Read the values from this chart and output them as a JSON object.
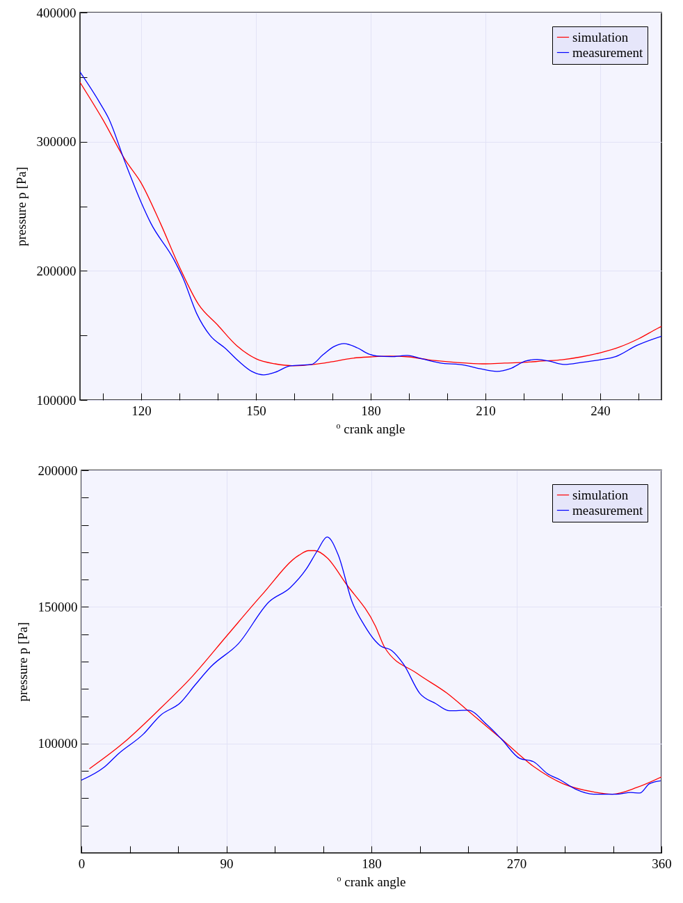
{
  "chart_data": [
    {
      "type": "line",
      "xlabel": "$^{o}$ crank angle",
      "ylabel": "pressure p [Pa]",
      "legend": "top right",
      "grid": true,
      "line_style": "solid",
      "xlim": [
        104,
        256
      ],
      "xticks": [
        {
          "value": 110,
          "label": null
        },
        120,
        {
          "value": 130,
          "label": null
        },
        {
          "value": 140,
          "label": null
        },
        150,
        {
          "value": 160,
          "label": null
        },
        {
          "value": 170,
          "label": null
        },
        180,
        {
          "value": 190,
          "label": null
        },
        {
          "value": 200,
          "label": null
        },
        210,
        {
          "value": 220,
          "label": null
        },
        {
          "value": 230,
          "label": null
        },
        240,
        {
          "value": 250,
          "label": null
        }
      ],
      "ylim": [
        100000,
        400000
      ],
      "yticks": [
        100000,
        {
          "value": 150000,
          "label": null
        },
        200000,
        {
          "value": 250000,
          "label": null
        },
        300000,
        {
          "value": 350000,
          "label": null
        },
        400000
      ],
      "series": [
        {
          "name": "simulation",
          "color": "#ff0000",
          "x": [
            104,
            110,
            115.8,
            120,
            125,
            130,
            135,
            140,
            145,
            150,
            155,
            160,
            165,
            170,
            175,
            180,
            185,
            190,
            195,
            200,
            205,
            210,
            215,
            220,
            225,
            230,
            235,
            240,
            245,
            250,
            255,
            256
          ],
          "values": [
            346000,
            317000,
            286000,
            268000,
            237000,
            203000,
            174000,
            158000,
            142000,
            132000,
            128000,
            126500,
            127500,
            129700,
            132300,
            133400,
            134000,
            133400,
            131200,
            129700,
            128600,
            128000,
            128600,
            129100,
            130200,
            131200,
            133400,
            136600,
            141000,
            147400,
            155500,
            157000
          ]
        },
        {
          "name": "measurement",
          "color": "#0000ff",
          "x": [
            104,
            109,
            111.5,
            115.8,
            120,
            122.5,
            128.5,
            131,
            134.5,
            138,
            142,
            145.5,
            149,
            152,
            155,
            159,
            164.5,
            167.5,
            170.5,
            173,
            176.5,
            179.5,
            181.5,
            185.5,
            189.5,
            193.5,
            198,
            204.5,
            208.5,
            213,
            216.5,
            220.5,
            223.5,
            226.5,
            230.5,
            235.5,
            240.5,
            244,
            249.5,
            256
          ],
          "values": [
            354000,
            331000,
            318000,
            284000,
            253000,
            237000,
            209000,
            194000,
            167000,
            150000,
            140000,
            130000,
            122000,
            119500,
            121500,
            126500,
            127500,
            135000,
            141500,
            143700,
            140400,
            135600,
            134100,
            133600,
            134500,
            131800,
            128800,
            127000,
            124300,
            122100,
            124300,
            130200,
            131400,
            130200,
            127500,
            129300,
            131400,
            133600,
            142200,
            149400
          ]
        }
      ]
    },
    {
      "type": "line",
      "xlabel": "$^{o}$ crank angle",
      "ylabel": "pressure p [Pa]",
      "legend": "top right",
      "grid": true,
      "line_style": "solid",
      "xlim": [
        0,
        360
      ],
      "xticks": [
        0,
        {
          "value": 30,
          "label": null
        },
        {
          "value": 60,
          "label": null
        },
        90,
        {
          "value": 120,
          "label": null
        },
        {
          "value": 150,
          "label": null
        },
        180,
        {
          "value": 210,
          "label": null
        },
        {
          "value": 240,
          "label": null
        },
        270,
        {
          "value": 300,
          "label": null
        },
        {
          "value": 330,
          "label": null
        },
        360
      ],
      "ylim": [
        60000,
        200000
      ],
      "yticks": [
        {
          "value": 70000,
          "label": null
        },
        {
          "value": 80000,
          "label": null
        },
        {
          "value": 90000,
          "label": null
        },
        100000,
        {
          "value": 110000,
          "label": null
        },
        {
          "value": 120000,
          "label": null
        },
        {
          "value": 130000,
          "label": null
        },
        {
          "value": 140000,
          "label": null
        },
        150000,
        {
          "value": 160000,
          "label": null
        },
        {
          "value": 170000,
          "label": null
        },
        {
          "value": 180000,
          "label": null
        },
        {
          "value": 190000,
          "label": null
        },
        200000
      ],
      "series": [
        {
          "name": "simulation",
          "color": "#ff0000",
          "x": [
            5,
            26,
            47.5,
            69,
            90.5,
            112,
            135,
            141,
            145,
            152.5,
            164,
            182.5,
            188.5,
            208.5,
            227,
            240,
            260.5,
            280.5,
            299,
            318,
            329.5,
            345,
            360
          ],
          "values": [
            90800,
            100200,
            112000,
            124700,
            139600,
            154400,
            168900,
            170600,
            170600,
            168000,
            158700,
            143000,
            134900,
            125600,
            118400,
            112000,
            101800,
            91700,
            85300,
            82300,
            81500,
            84000,
            87800
          ]
        },
        {
          "name": "measurement",
          "color": "#0000ff",
          "x": [
            0,
            14,
            23,
            38.5,
            49,
            61.5,
            70.5,
            80.5,
            97.5,
            116.5,
            129.5,
            139.5,
            146.5,
            152.5,
            159.5,
            168,
            175.5,
            182.5,
            185.5,
            192.5,
            200,
            210,
            220,
            228.5,
            240,
            251.5,
            260.5,
            272,
            280.5,
            289,
            297.5,
            306.5,
            318,
            332,
            341,
            346.5,
            352.5,
            359.5
          ],
          "values": [
            86600,
            91300,
            96300,
            103500,
            110300,
            115000,
            121400,
            128200,
            136600,
            151900,
            157000,
            163800,
            170600,
            175600,
            168900,
            151900,
            143400,
            137500,
            135800,
            134100,
            129000,
            118400,
            114600,
            112000,
            112200,
            107000,
            101800,
            94600,
            93400,
            89100,
            86600,
            83400,
            81500,
            81500,
            82100,
            81900,
            85300,
            86400
          ]
        }
      ]
    }
  ]
}
